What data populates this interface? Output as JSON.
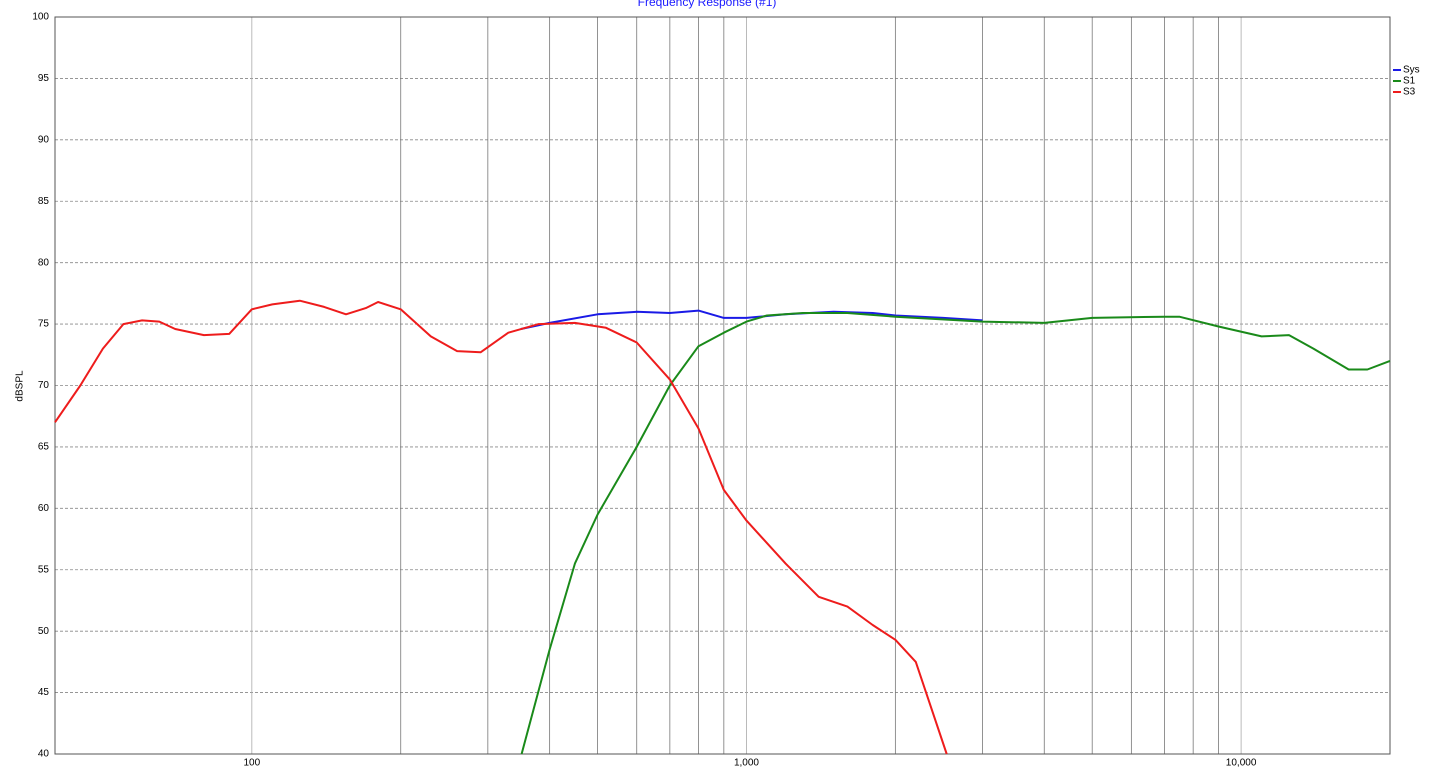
{
  "chart_data": {
    "type": "line",
    "title": "Frequency Response (#1)",
    "y_label": "dBSPL",
    "xscale": "log",
    "xlim": [
      40,
      20000
    ],
    "ylim": [
      40,
      100
    ],
    "xticks": [
      {
        "value": 100,
        "label": "100"
      },
      {
        "value": 1000,
        "label": "1,000"
      },
      {
        "value": 10000,
        "label": "10,000"
      }
    ],
    "xminor": [
      200,
      300,
      400,
      500,
      600,
      700,
      800,
      900,
      2000,
      3000,
      4000,
      5000,
      6000,
      7000,
      8000,
      9000
    ],
    "yticks": [
      40,
      45,
      50,
      55,
      60,
      65,
      70,
      75,
      80,
      85,
      90,
      95,
      100
    ],
    "grid": true,
    "legend": "right",
    "series": [
      {
        "name": "Sys",
        "color": "#1a1ae6",
        "x": [
          350,
          400,
          500,
          600,
          700,
          800,
          900,
          1000,
          1200,
          1500,
          1800,
          2000,
          2500,
          3000
        ],
        "values": [
          74.6,
          75.1,
          75.8,
          76,
          75.9,
          76.1,
          75.5,
          75.5,
          75.8,
          76,
          75.9,
          75.7,
          75.5,
          75.3
        ]
      },
      {
        "name": "S1",
        "color": "#1a8a1a",
        "x": [
          351,
          400,
          450,
          500,
          600,
          700,
          800,
          900,
          1000,
          1100,
          1300,
          1600,
          2000,
          3000,
          4000,
          5000,
          7000,
          7500,
          9000,
          11000,
          12500,
          14000,
          16500,
          18000,
          20000
        ],
        "values": [
          40,
          48.5,
          55.5,
          59.5,
          65,
          70,
          73.2,
          74.3,
          75.2,
          75.7,
          75.9,
          75.9,
          75.6,
          75.2,
          75.1,
          75.5,
          75.6,
          75.6,
          74.8,
          74,
          74.1,
          73,
          71.3,
          71.3,
          72
        ]
      },
      {
        "name": "S3",
        "color": "#ee1c1c",
        "x": [
          40,
          45,
          50,
          55,
          60,
          65,
          70,
          80,
          90,
          100,
          110,
          125,
          140,
          155,
          170,
          180,
          200,
          230,
          260,
          290,
          330,
          380,
          450,
          520,
          600,
          700,
          800,
          900,
          1000,
          1200,
          1400,
          1600,
          1800,
          2000,
          2200,
          2540
        ],
        "values": [
          67,
          70,
          73,
          75,
          75.3,
          75.2,
          74.6,
          74.1,
          74.2,
          76.2,
          76.6,
          76.9,
          76.4,
          75.8,
          76.3,
          76.8,
          76.2,
          74,
          72.8,
          72.7,
          74.3,
          75,
          75.1,
          74.7,
          73.5,
          70.5,
          66.5,
          61.5,
          59,
          55.5,
          52.8,
          52,
          50.5,
          49.3,
          47.5,
          40
        ]
      }
    ]
  }
}
